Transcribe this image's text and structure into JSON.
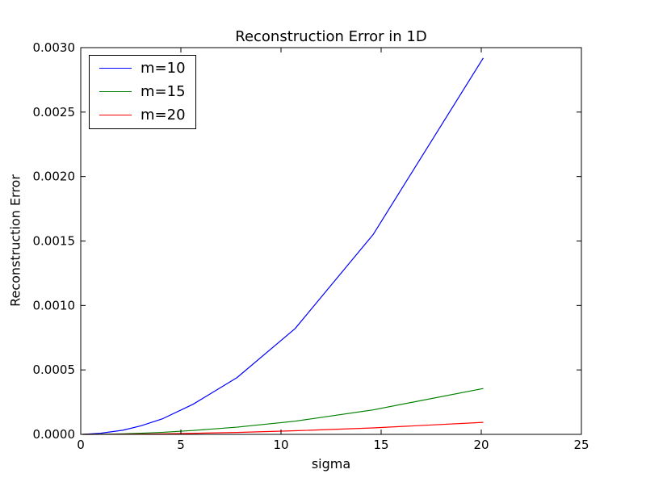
{
  "chart_data": {
    "type": "line",
    "title": "Reconstruction Error in 1D",
    "xlabel": "sigma",
    "ylabel": "Reconstruction Error",
    "xlim": [
      0,
      25
    ],
    "ylim": [
      0,
      0.003
    ],
    "x_ticks": [
      "0",
      "5",
      "10",
      "15",
      "20",
      "25"
    ],
    "y_ticks": [
      "0.0000",
      "0.0005",
      "0.0010",
      "0.0015",
      "0.0020",
      "0.0025",
      "0.0030"
    ],
    "grid": false,
    "legend_position": "top-left",
    "x": [
      0.1,
      1.0,
      2.1,
      3.0,
      4.1,
      5.6,
      7.8,
      10.7,
      14.6,
      20.1
    ],
    "series": [
      {
        "name": "m=10",
        "color": "#0000ff",
        "values": [
          0.0,
          9e-06,
          3.2e-05,
          6.6e-05,
          0.000122,
          0.000233,
          0.00044,
          0.00082,
          0.00155,
          0.00292
        ]
      },
      {
        "name": "m=15",
        "color": "#008000",
        "values": [
          0.0,
          1e-06,
          4e-06,
          9e-06,
          1.6e-05,
          3e-05,
          5.6e-05,
          0.000102,
          0.00019,
          0.000356
        ]
      },
      {
        "name": "m=20",
        "color": "#ff0000",
        "values": [
          0.0,
          3e-07,
          1e-06,
          2e-06,
          4e-06,
          8e-06,
          1.5e-05,
          2.8e-05,
          5e-05,
          9.3e-05
        ]
      }
    ]
  }
}
